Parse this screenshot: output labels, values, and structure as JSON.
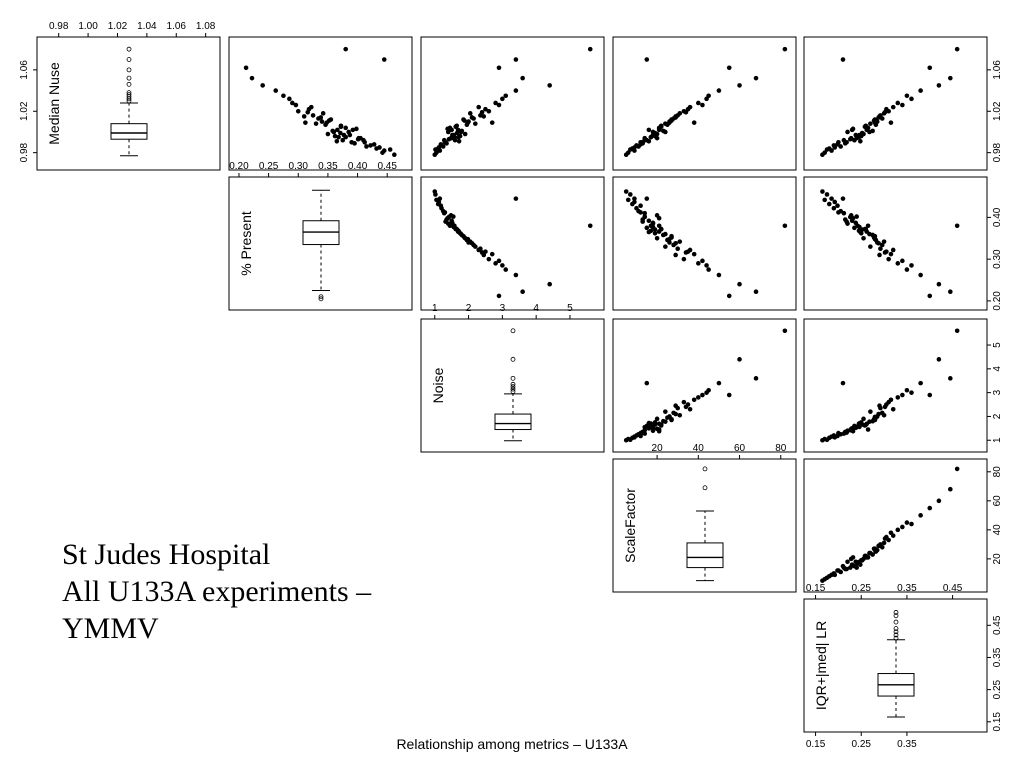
{
  "note": {
    "lines": [
      "St Judes Hospital",
      "All U133A experiments –",
      "YMMV"
    ]
  },
  "caption": "Relationship among metrics – U133A",
  "chart_data": {
    "type": "scatter",
    "layout": "scatterplot-matrix-upper-triangle",
    "variables": [
      {
        "name": "Median Nuse",
        "range": [
          0.97,
          1.085
        ],
        "ticks_top": [
          "0.98",
          "1.00",
          "1.02",
          "1.04",
          "1.06",
          "1.08"
        ],
        "ticks_side": [
          "0.98",
          "1.02",
          "1.06"
        ],
        "box": {
          "min": 0.977,
          "q1": 0.993,
          "median": 0.999,
          "q3": 1.008,
          "max": 1.028,
          "outliers": [
            1.03,
            1.032,
            1.034,
            1.036,
            1.038,
            1.046,
            1.052,
            1.06,
            1.07,
            1.08
          ]
        }
      },
      {
        "name": "% Present",
        "range": [
          0.195,
          0.48
        ],
        "ticks_top": [
          "0.20",
          "0.25",
          "0.30",
          "0.35",
          "0.40",
          "0.45"
        ],
        "ticks_side": [
          "0.20",
          "0.30",
          "0.40"
        ],
        "box": {
          "min": 0.225,
          "q1": 0.335,
          "median": 0.365,
          "q3": 0.392,
          "max": 0.465,
          "outliers": [
            0.205,
            0.21
          ]
        }
      },
      {
        "name": "Noise",
        "range": [
          0.8,
          5.8
        ],
        "ticks_top": [
          "1",
          "2",
          "3",
          "4",
          "5"
        ],
        "ticks_side": [
          "1",
          "2",
          "3",
          "4",
          "5"
        ],
        "box": {
          "min": 0.98,
          "q1": 1.45,
          "median": 1.7,
          "q3": 2.1,
          "max": 2.95,
          "outliers": [
            3.05,
            3.15,
            3.25,
            3.35,
            3.6,
            4.4,
            5.6
          ]
        }
      },
      {
        "name": "ScaleFactor",
        "range": [
          2,
          84
        ],
        "ticks_top": [
          "20",
          "40",
          "60",
          "80"
        ],
        "ticks_side": [
          "20",
          "40",
          "60",
          "80"
        ],
        "box": {
          "min": 5,
          "q1": 14,
          "median": 21,
          "q3": 31,
          "max": 53,
          "outliers": [
            69,
            82
          ]
        }
      },
      {
        "name": "IQR+|med| LR",
        "range": [
          0.14,
          0.51
        ],
        "ticks_top": [
          "0.15",
          "0.25",
          "0.35",
          "0.45"
        ],
        "ticks_bottom": [
          "0.15",
          "0.25",
          "0.35"
        ],
        "ticks_side": [
          "0.15",
          "0.25",
          "0.35",
          "0.45"
        ],
        "box": {
          "min": 0.165,
          "q1": 0.23,
          "median": 0.265,
          "q3": 0.3,
          "max": 0.405,
          "outliers": [
            0.41,
            0.42,
            0.43,
            0.44,
            0.46,
            0.48,
            0.49
          ]
        }
      }
    ],
    "observations": [
      [
        1.0,
        0.385,
        1.4,
        18,
        0.22
      ],
      [
        0.994,
        0.402,
        1.55,
        14,
        0.24
      ],
      [
        1.006,
        0.372,
        1.65,
        22,
        0.26
      ],
      [
        0.99,
        0.412,
        1.3,
        12,
        0.2
      ],
      [
        1.012,
        0.355,
        1.85,
        27,
        0.28
      ],
      [
        0.987,
        0.422,
        1.2,
        10,
        0.19
      ],
      [
        1.018,
        0.342,
        2.05,
        31,
        0.3
      ],
      [
        0.984,
        0.432,
        1.1,
        8,
        0.18
      ],
      [
        1.024,
        0.322,
        2.3,
        36,
        0.32
      ],
      [
        0.98,
        0.442,
        1.05,
        6,
        0.17
      ],
      [
        0.996,
        0.362,
        1.75,
        19,
        0.25
      ],
      [
        1.002,
        0.392,
        1.5,
        16,
        0.23
      ],
      [
        1.008,
        0.33,
        2.2,
        24,
        0.27
      ],
      [
        0.992,
        0.375,
        1.6,
        15,
        0.235
      ],
      [
        1.015,
        0.31,
        2.45,
        29,
        0.29
      ],
      [
        0.998,
        0.35,
        1.9,
        20,
        0.255
      ],
      [
        1.004,
        0.38,
        1.45,
        21,
        0.265
      ],
      [
        0.989,
        0.395,
        1.35,
        13,
        0.215
      ],
      [
        1.01,
        0.34,
        2.0,
        26,
        0.285
      ],
      [
        0.995,
        0.368,
        1.7,
        17,
        0.245
      ],
      [
        1.02,
        0.3,
        2.6,
        33,
        0.31
      ],
      [
        0.986,
        0.415,
        1.25,
        11,
        0.205
      ],
      [
        1.028,
        0.29,
        2.8,
        40,
        0.33
      ],
      [
        0.982,
        0.445,
        1.15,
        9,
        0.185
      ],
      [
        1.001,
        0.358,
        1.8,
        23,
        0.275
      ],
      [
        0.997,
        0.387,
        1.52,
        18,
        0.238
      ],
      [
        1.007,
        0.346,
        1.95,
        25,
        0.282
      ],
      [
        0.993,
        0.401,
        1.42,
        14,
        0.226
      ],
      [
        1.013,
        0.334,
        2.15,
        28,
        0.296
      ],
      [
        0.999,
        0.371,
        1.66,
        19,
        0.252
      ],
      [
        1.035,
        0.275,
        3.1,
        45,
        0.35
      ],
      [
        1.04,
        0.262,
        3.4,
        50,
        0.38
      ],
      [
        0.983,
        0.455,
        1.02,
        7,
        0.175
      ],
      [
        1.022,
        0.318,
        2.5,
        35,
        0.305
      ],
      [
        1.003,
        0.398,
        1.38,
        21,
        0.232
      ],
      [
        0.991,
        0.365,
        1.72,
        16,
        0.248
      ],
      [
        1.011,
        0.352,
        1.88,
        27,
        0.278
      ],
      [
        0.988,
        0.428,
        1.18,
        12,
        0.198
      ],
      [
        1.016,
        0.325,
        2.35,
        30,
        0.292
      ],
      [
        0.995,
        0.38,
        1.58,
        17,
        0.242
      ],
      [
        1.045,
        0.24,
        4.4,
        60,
        0.42
      ],
      [
        1.052,
        0.222,
        3.6,
        68,
        0.445
      ],
      [
        1.062,
        0.212,
        2.9,
        55,
        0.4
      ],
      [
        1.08,
        0.38,
        5.6,
        82,
        0.46
      ],
      [
        1.07,
        0.445,
        3.4,
        15,
        0.21
      ],
      [
        0.978,
        0.462,
        1.0,
        5,
        0.165
      ],
      [
        1.009,
        0.312,
        2.7,
        38,
        0.315
      ],
      [
        0.994,
        0.405,
        1.48,
        20,
        0.228
      ],
      [
        1.026,
        0.296,
        2.9,
        42,
        0.34
      ],
      [
        1.0,
        0.36,
        1.78,
        24,
        0.268
      ],
      [
        1.005,
        0.372,
        1.62,
        22,
        0.258
      ],
      [
        0.99,
        0.39,
        1.32,
        13,
        0.218
      ],
      [
        1.014,
        0.338,
        2.1,
        29,
        0.288
      ],
      [
        0.997,
        0.377,
        1.56,
        18,
        0.246
      ],
      [
        1.032,
        0.285,
        3.0,
        44,
        0.36
      ],
      [
        0.985,
        0.437,
        1.12,
        9,
        0.192
      ],
      [
        1.019,
        0.316,
        2.4,
        34,
        0.302
      ],
      [
        1.002,
        0.366,
        1.69,
        21,
        0.262
      ],
      [
        0.992,
        0.41,
        1.28,
        14,
        0.212
      ],
      [
        1.009,
        0.348,
        1.98,
        26,
        0.28
      ]
    ]
  }
}
